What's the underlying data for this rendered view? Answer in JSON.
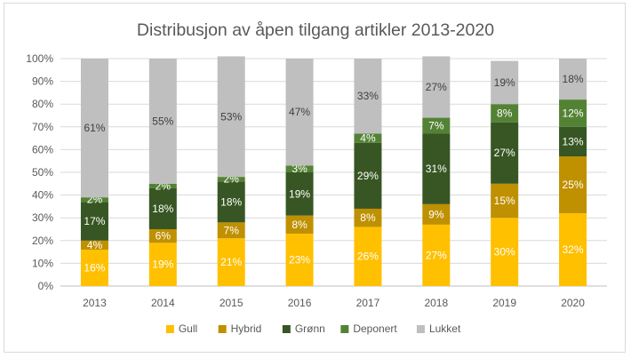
{
  "chart_data": {
    "type": "bar",
    "stacked": true,
    "percent_stacked": true,
    "title": "Distribusjon av åpen tilgang artikler 2013-2020",
    "categories": [
      "2013",
      "2014",
      "2015",
      "2016",
      "2017",
      "2018",
      "2019",
      "2020"
    ],
    "ylim": [
      0,
      100
    ],
    "yticks": [
      "0%",
      "10%",
      "20%",
      "30%",
      "40%",
      "50%",
      "60%",
      "70%",
      "80%",
      "90%",
      "100%"
    ],
    "grid": true,
    "legend_position": "bottom",
    "series": [
      {
        "name": "Gull",
        "color": "#ffc000",
        "label_color": "#ffffff",
        "values": [
          16,
          19,
          21,
          23,
          26,
          27,
          30,
          32
        ],
        "labels": [
          "16%",
          "19%",
          "21%",
          "23%",
          "26%",
          "27%",
          "30%",
          "32%"
        ]
      },
      {
        "name": "Hybrid",
        "color": "#bf9000",
        "label_color": "#ffffff",
        "values": [
          4,
          6,
          7,
          8,
          8,
          9,
          15,
          25
        ],
        "labels": [
          "4%",
          "6%",
          "7%",
          "8%",
          "8%",
          "9%",
          "15%",
          "25%"
        ]
      },
      {
        "name": "Grønn",
        "color": "#375623",
        "label_color": "#ffffff",
        "values": [
          17,
          18,
          18,
          19,
          29,
          31,
          27,
          13
        ],
        "labels": [
          "17%",
          "18%",
          "18%",
          "19%",
          "29%",
          "31%",
          "27%",
          "13%"
        ]
      },
      {
        "name": "Deponert",
        "color": "#548235",
        "label_color": "#ffffff",
        "values": [
          2,
          2,
          2,
          3,
          4,
          7,
          8,
          12
        ],
        "labels": [
          "2%",
          "2%",
          "2%",
          "3%",
          "4%",
          "7%",
          "8%",
          "12%"
        ]
      },
      {
        "name": "Lukket",
        "color": "#bfbfbf",
        "label_color": "#404040",
        "values": [
          61,
          55,
          53,
          47,
          33,
          27,
          19,
          18
        ],
        "labels": [
          "61%",
          "55%",
          "53%",
          "47%",
          "33%",
          "27%",
          "19%",
          "18%"
        ]
      }
    ]
  }
}
